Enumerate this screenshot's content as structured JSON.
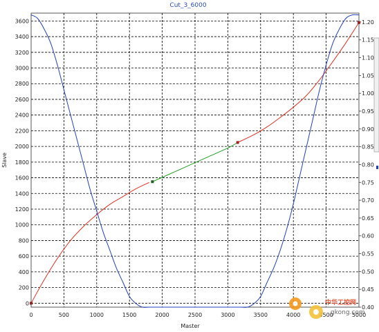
{
  "chart_data": {
    "type": "line",
    "title": "Cut_3_6000",
    "xlabel": "Master",
    "ylabel": "Slave",
    "x_ticks": [
      "0",
      "500",
      "1000",
      "1500",
      "2000",
      "2500",
      "3000",
      "3500",
      "4000",
      "4500",
      "5000"
    ],
    "y_left_ticks": [
      "0",
      "200",
      "400",
      "600",
      "800",
      "1000",
      "1200",
      "1400",
      "1600",
      "1800",
      "2000",
      "2200",
      "2400",
      "2600",
      "2800",
      "3000",
      "3200",
      "3400",
      "3600"
    ],
    "y_right_ticks": [
      "0.40",
      "0.45",
      "0.50",
      "0.55",
      "0.60",
      "0.65",
      "0.70",
      "0.75",
      "0.80",
      "0.85",
      "0.90",
      "0.95",
      "1.00",
      "1.05",
      "1.10",
      "1.15",
      "1.20"
    ],
    "xlim": [
      0,
      5000
    ],
    "ylim_left": [
      -50,
      3700
    ],
    "ylim_right": [
      0.4,
      1.225
    ],
    "grid": true,
    "series": [
      {
        "axis": "left",
        "color": "#e03020",
        "x": [
          0,
          200,
          400,
          600,
          800,
          1000,
          1200,
          1400,
          1600,
          1800
        ],
        "values": [
          0,
          300,
          570,
          800,
          980,
          1130,
          1260,
          1360,
          1460,
          1540
        ]
      },
      {
        "axis": "left",
        "color": "#22a022",
        "x": [
          1850,
          2200,
          2600,
          3000,
          3150
        ],
        "values": [
          1550,
          1680,
          1830,
          1980,
          2050
        ]
      },
      {
        "axis": "left",
        "color": "#e03020",
        "x": [
          3150,
          3400,
          3600,
          3800,
          4000,
          4200,
          4400,
          4600,
          4800,
          5000
        ],
        "values": [
          2050,
          2150,
          2250,
          2370,
          2500,
          2650,
          2850,
          3080,
          3320,
          3580
        ]
      },
      {
        "axis": "right",
        "color": "#2040c0",
        "x": [
          0,
          100,
          200,
          300,
          400,
          500,
          600,
          700,
          800,
          900,
          1000,
          1100,
          1200,
          1300,
          1400,
          1500,
          1600,
          1700,
          1800,
          1850,
          2000,
          2500,
          3000,
          3150,
          3200,
          3300,
          3400,
          3500,
          3600,
          3700,
          3800,
          3900,
          4000,
          4100,
          4200,
          4300,
          4400,
          4500,
          4600,
          4700,
          4800,
          4900,
          5000
        ],
        "values": [
          1.22,
          1.21,
          1.18,
          1.14,
          1.08,
          1.01,
          0.94,
          0.87,
          0.8,
          0.73,
          0.67,
          0.61,
          0.56,
          0.51,
          0.47,
          0.43,
          0.41,
          0.4,
          0.4,
          0.4,
          0.4,
          0.4,
          0.4,
          0.4,
          0.4,
          0.4,
          0.41,
          0.43,
          0.47,
          0.51,
          0.56,
          0.62,
          0.69,
          0.77,
          0.85,
          0.93,
          1.01,
          1.08,
          1.14,
          1.18,
          1.21,
          1.22,
          1.22
        ]
      }
    ],
    "markers": [
      {
        "x": 0,
        "y": 0,
        "color": "#a02020"
      },
      {
        "x": 1850,
        "y": 1550,
        "color": "#206020"
      },
      {
        "x": 3150,
        "y": 2050,
        "color": "#a02020"
      },
      {
        "x": 5000,
        "y": 3580,
        "color": "#a02020"
      }
    ]
  },
  "watermark": {
    "text": "中华工控网",
    "domain": "gkong.com"
  }
}
